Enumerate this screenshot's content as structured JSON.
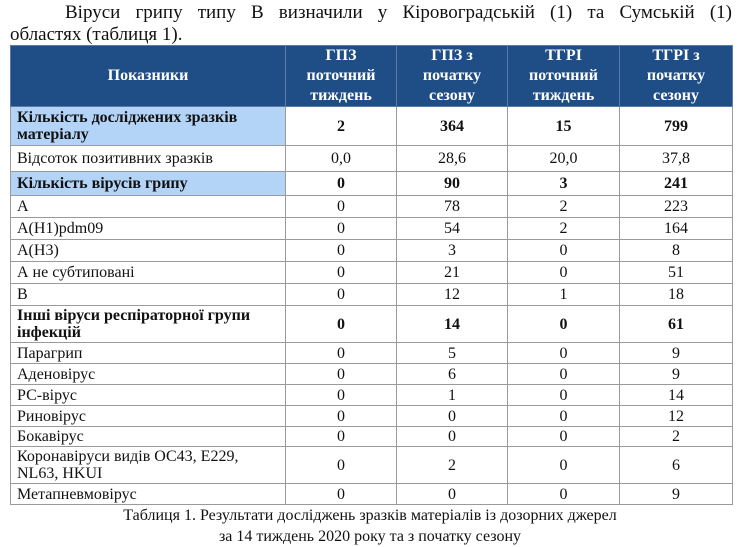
{
  "intro": {
    "line1": "Віруси грипу типу В визначили у Кіровоградській (1) та Сумській (1)",
    "line2": "областях (таблиця 1)."
  },
  "table": {
    "headers": [
      "Показники",
      "ГПЗ поточний тиждень",
      "ГПЗ з початку сезону",
      "ТГРІ поточний тиждень",
      "ТГРІ з початку сезону"
    ],
    "rows": [
      {
        "label": "Кількість досліджених зразків матеріалу",
        "values": [
          "2",
          "364",
          "15",
          "799"
        ],
        "bold": true,
        "highlight": true
      },
      {
        "label": "Відсоток позитивних зразків",
        "values": [
          "0,0",
          "28,6",
          "20,0",
          "37,8"
        ]
      },
      {
        "label": "Кількість вірусів грипу",
        "values": [
          "0",
          "90",
          "3",
          "241"
        ],
        "bold": true,
        "highlight": true
      },
      {
        "label": "А",
        "values": [
          "0",
          "78",
          "2",
          "223"
        ]
      },
      {
        "label": "А(Н1)pdm09",
        "values": [
          "0",
          "54",
          "2",
          "164"
        ]
      },
      {
        "label": "А(Н3)",
        "values": [
          "0",
          "3",
          "0",
          "8"
        ]
      },
      {
        "label": "А не субтиповані",
        "values": [
          "0",
          "21",
          "0",
          "51"
        ]
      },
      {
        "label": "В",
        "values": [
          "0",
          "12",
          "1",
          "18"
        ]
      },
      {
        "label": "Інші віруси респіраторної групи інфекцій",
        "values": [
          "0",
          "14",
          "0",
          "61"
        ],
        "bold": true
      },
      {
        "label": "Парагрип",
        "values": [
          "0",
          "5",
          "0",
          "9"
        ]
      },
      {
        "label": "Аденовірус",
        "values": [
          "0",
          "6",
          "0",
          "9"
        ]
      },
      {
        "label": "РС-вірус",
        "values": [
          "0",
          "1",
          "0",
          "14"
        ]
      },
      {
        "label": "Риновірус",
        "values": [
          "0",
          "0",
          "0",
          "12"
        ]
      },
      {
        "label": "Бокавірус",
        "values": [
          "0",
          "0",
          "0",
          "2"
        ]
      },
      {
        "label": "Коронавіруси видів ОС43, Е229, NL63, HKUI",
        "values": [
          "0",
          "2",
          "0",
          "6"
        ]
      },
      {
        "label": "Метапневмовірус",
        "values": [
          "0",
          "0",
          "0",
          "9"
        ]
      }
    ]
  },
  "caption": {
    "line1": "Таблиця 1. Результати досліджень зразків матеріалів із дозорних джерел",
    "line2": "за 14 тиждень 2020 року та з початку сезону"
  }
}
